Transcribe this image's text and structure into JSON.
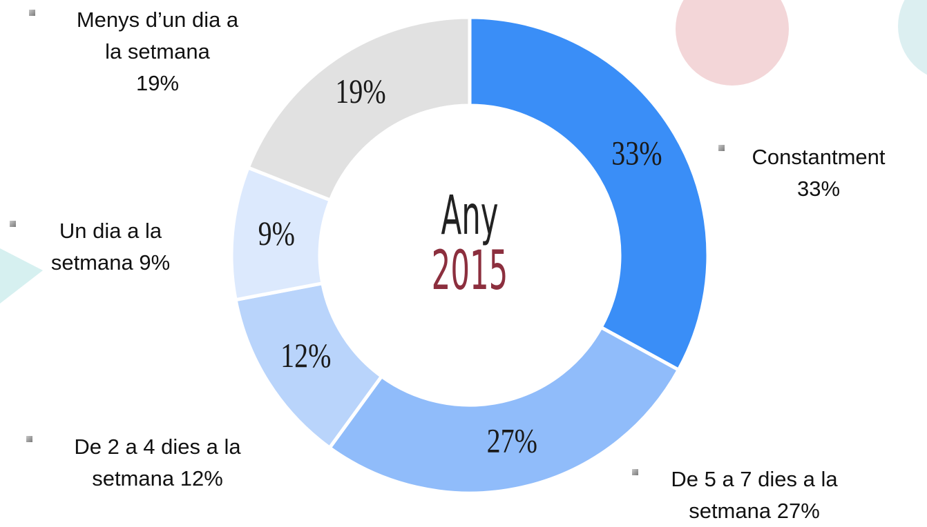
{
  "chart_data": {
    "type": "donut",
    "center_title": "Any",
    "center_subtitle": "2015",
    "categories": [
      "Constantment",
      "De 5 a 7 dies a la setmana",
      "De 2 a 4 dies a la setmana",
      "Un dia a la setmana",
      "Menys d’un dia a la setmana"
    ],
    "values": [
      33,
      27,
      12,
      9,
      19
    ],
    "value_labels": [
      "33%",
      "27%",
      "12%",
      "9%",
      "19%"
    ],
    "colors": [
      "#3a8ef7",
      "#90bcfa",
      "#b9d4fb",
      "#dce9fd",
      "#e1e1e1"
    ]
  }
}
